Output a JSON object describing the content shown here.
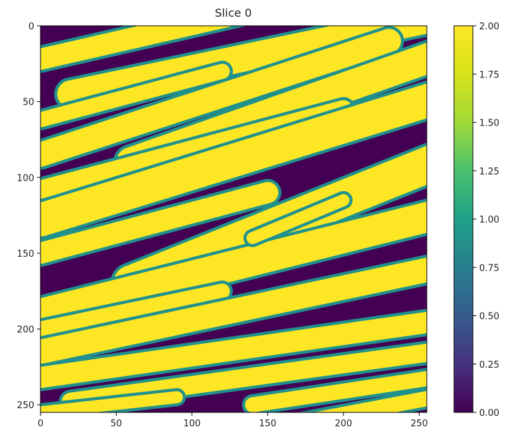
{
  "chart_data": {
    "type": "heatmap",
    "title": "Slice 0",
    "xlabel": "",
    "ylabel": "",
    "xlim": [
      0,
      255
    ],
    "ylim": [
      255,
      0
    ],
    "x_ticks": [
      0,
      50,
      100,
      150,
      200,
      250
    ],
    "y_ticks": [
      0,
      50,
      100,
      150,
      200,
      250
    ],
    "colormap": "viridis",
    "color_range": [
      0.0,
      2.0
    ],
    "colorbar_ticks": [
      0.0,
      0.25,
      0.5,
      0.75,
      1.0,
      1.25,
      1.5,
      1.75,
      2.0
    ],
    "colorbar_tick_labels": [
      "0.00",
      "0.25",
      "0.50",
      "0.75",
      "1.00",
      "1.25",
      "1.50",
      "1.75",
      "2.00"
    ],
    "value_colors": {
      "0": "#440154",
      "1": "#21918c",
      "2": "#fde725"
    },
    "grid": false,
    "description_values": [
      0,
      1,
      2
    ]
  }
}
